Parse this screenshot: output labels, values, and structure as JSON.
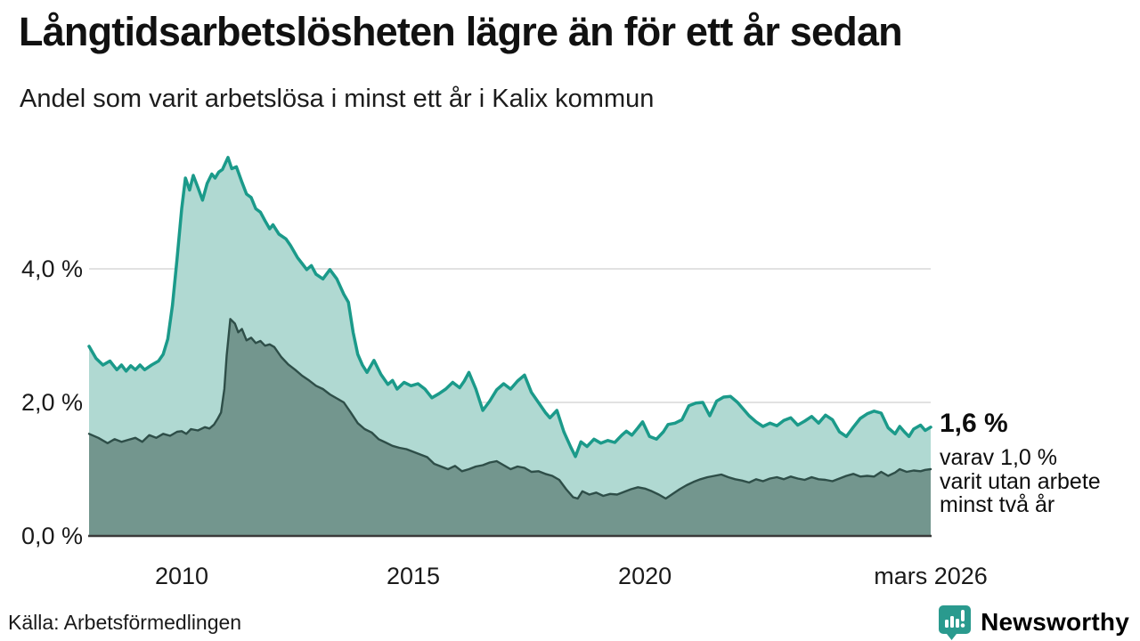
{
  "header": {
    "title": "Långtidsarbetslösheten lägre än för ett år sedan",
    "subtitle": "Andel som varit arbetslösa i minst ett år i Kalix kommun"
  },
  "chart_data": {
    "type": "area",
    "title": "Långtidsarbetslösheten lägre än för ett år sedan",
    "subtitle": "Andel som varit arbetslösa i minst ett år i Kalix kommun",
    "x_unit": "decimal_year",
    "x_range": [
      2008.0,
      2026.17
    ],
    "ylim": [
      0,
      6
    ],
    "grid": "horizontal",
    "legend": "none",
    "y_ticks": [
      {
        "value": 4.0,
        "label": "4,0 %"
      },
      {
        "value": 2.0,
        "label": "2,0 %"
      },
      {
        "value": 0.0,
        "label": "0,0 %"
      }
    ],
    "x_ticks": [
      {
        "value": 2010.0,
        "label": "2010"
      },
      {
        "value": 2015.0,
        "label": "2015"
      },
      {
        "value": 2020.0,
        "label": "2020"
      },
      {
        "value": 2026.17,
        "label": "mars 2026"
      }
    ],
    "series": [
      {
        "name": "total_minst_ett_ar",
        "latest_value_pct": 1.6,
        "line_color": "#1b9a8a",
        "fill_color": "#b0d9d2",
        "line_width": 3.5,
        "points": [
          [
            2008.0,
            2.84
          ],
          [
            2008.15,
            2.66
          ],
          [
            2008.3,
            2.56
          ],
          [
            2008.45,
            2.62
          ],
          [
            2008.6,
            2.49
          ],
          [
            2008.7,
            2.56
          ],
          [
            2008.8,
            2.47
          ],
          [
            2008.9,
            2.55
          ],
          [
            2009.0,
            2.49
          ],
          [
            2009.1,
            2.56
          ],
          [
            2009.2,
            2.49
          ],
          [
            2009.35,
            2.56
          ],
          [
            2009.5,
            2.62
          ],
          [
            2009.6,
            2.72
          ],
          [
            2009.7,
            2.95
          ],
          [
            2009.8,
            3.45
          ],
          [
            2009.9,
            4.15
          ],
          [
            2010.0,
            4.9
          ],
          [
            2010.08,
            5.36
          ],
          [
            2010.17,
            5.18
          ],
          [
            2010.25,
            5.4
          ],
          [
            2010.35,
            5.22
          ],
          [
            2010.45,
            5.03
          ],
          [
            2010.55,
            5.28
          ],
          [
            2010.65,
            5.42
          ],
          [
            2010.72,
            5.36
          ],
          [
            2010.8,
            5.45
          ],
          [
            2010.88,
            5.49
          ],
          [
            2011.0,
            5.67
          ],
          [
            2011.08,
            5.5
          ],
          [
            2011.18,
            5.53
          ],
          [
            2011.3,
            5.3
          ],
          [
            2011.4,
            5.12
          ],
          [
            2011.5,
            5.07
          ],
          [
            2011.6,
            4.9
          ],
          [
            2011.7,
            4.85
          ],
          [
            2011.8,
            4.72
          ],
          [
            2011.9,
            4.6
          ],
          [
            2011.97,
            4.66
          ],
          [
            2012.1,
            4.52
          ],
          [
            2012.25,
            4.45
          ],
          [
            2012.35,
            4.35
          ],
          [
            2012.5,
            4.17
          ],
          [
            2012.6,
            4.08
          ],
          [
            2012.7,
            3.99
          ],
          [
            2012.8,
            4.05
          ],
          [
            2012.9,
            3.92
          ],
          [
            2013.05,
            3.85
          ],
          [
            2013.2,
            3.99
          ],
          [
            2013.35,
            3.85
          ],
          [
            2013.5,
            3.62
          ],
          [
            2013.6,
            3.5
          ],
          [
            2013.7,
            3.05
          ],
          [
            2013.8,
            2.72
          ],
          [
            2013.9,
            2.56
          ],
          [
            2014.0,
            2.45
          ],
          [
            2014.15,
            2.63
          ],
          [
            2014.3,
            2.42
          ],
          [
            2014.45,
            2.27
          ],
          [
            2014.55,
            2.33
          ],
          [
            2014.65,
            2.2
          ],
          [
            2014.8,
            2.3
          ],
          [
            2014.95,
            2.25
          ],
          [
            2015.1,
            2.28
          ],
          [
            2015.25,
            2.2
          ],
          [
            2015.4,
            2.07
          ],
          [
            2015.55,
            2.13
          ],
          [
            2015.7,
            2.2
          ],
          [
            2015.85,
            2.3
          ],
          [
            2016.0,
            2.22
          ],
          [
            2016.1,
            2.32
          ],
          [
            2016.2,
            2.45
          ],
          [
            2016.35,
            2.2
          ],
          [
            2016.5,
            1.88
          ],
          [
            2016.65,
            2.02
          ],
          [
            2016.8,
            2.19
          ],
          [
            2016.95,
            2.28
          ],
          [
            2017.1,
            2.2
          ],
          [
            2017.25,
            2.32
          ],
          [
            2017.4,
            2.41
          ],
          [
            2017.55,
            2.15
          ],
          [
            2017.7,
            2.0
          ],
          [
            2017.85,
            1.85
          ],
          [
            2017.95,
            1.77
          ],
          [
            2018.1,
            1.88
          ],
          [
            2018.25,
            1.56
          ],
          [
            2018.4,
            1.33
          ],
          [
            2018.5,
            1.19
          ],
          [
            2018.62,
            1.41
          ],
          [
            2018.75,
            1.34
          ],
          [
            2018.9,
            1.45
          ],
          [
            2019.05,
            1.39
          ],
          [
            2019.2,
            1.43
          ],
          [
            2019.35,
            1.4
          ],
          [
            2019.5,
            1.51
          ],
          [
            2019.6,
            1.57
          ],
          [
            2019.72,
            1.51
          ],
          [
            2019.85,
            1.62
          ],
          [
            2019.95,
            1.71
          ],
          [
            2020.1,
            1.49
          ],
          [
            2020.25,
            1.45
          ],
          [
            2020.4,
            1.56
          ],
          [
            2020.5,
            1.67
          ],
          [
            2020.65,
            1.69
          ],
          [
            2020.8,
            1.74
          ],
          [
            2020.95,
            1.95
          ],
          [
            2021.1,
            1.99
          ],
          [
            2021.25,
            2.0
          ],
          [
            2021.4,
            1.8
          ],
          [
            2021.55,
            2.02
          ],
          [
            2021.7,
            2.08
          ],
          [
            2021.85,
            2.09
          ],
          [
            2022.0,
            2.0
          ],
          [
            2022.1,
            1.92
          ],
          [
            2022.25,
            1.8
          ],
          [
            2022.4,
            1.71
          ],
          [
            2022.55,
            1.64
          ],
          [
            2022.7,
            1.69
          ],
          [
            2022.85,
            1.65
          ],
          [
            2023.0,
            1.73
          ],
          [
            2023.15,
            1.77
          ],
          [
            2023.3,
            1.66
          ],
          [
            2023.45,
            1.72
          ],
          [
            2023.6,
            1.79
          ],
          [
            2023.75,
            1.69
          ],
          [
            2023.9,
            1.81
          ],
          [
            2024.05,
            1.74
          ],
          [
            2024.2,
            1.56
          ],
          [
            2024.35,
            1.49
          ],
          [
            2024.5,
            1.63
          ],
          [
            2024.65,
            1.76
          ],
          [
            2024.8,
            1.83
          ],
          [
            2024.95,
            1.87
          ],
          [
            2025.1,
            1.84
          ],
          [
            2025.25,
            1.62
          ],
          [
            2025.4,
            1.53
          ],
          [
            2025.5,
            1.64
          ],
          [
            2025.6,
            1.56
          ],
          [
            2025.7,
            1.49
          ],
          [
            2025.8,
            1.6
          ],
          [
            2025.95,
            1.66
          ],
          [
            2026.05,
            1.58
          ],
          [
            2026.17,
            1.63
          ]
        ]
      },
      {
        "name": "varav_minst_tva_ar",
        "latest_value_pct": 1.0,
        "line_color": "#2e4e48",
        "fill_color": "#73968e",
        "line_width": 2.4,
        "points": [
          [
            2008.0,
            1.53
          ],
          [
            2008.2,
            1.47
          ],
          [
            2008.4,
            1.39
          ],
          [
            2008.55,
            1.45
          ],
          [
            2008.7,
            1.41
          ],
          [
            2008.85,
            1.44
          ],
          [
            2009.0,
            1.47
          ],
          [
            2009.15,
            1.41
          ],
          [
            2009.3,
            1.51
          ],
          [
            2009.45,
            1.47
          ],
          [
            2009.6,
            1.53
          ],
          [
            2009.75,
            1.5
          ],
          [
            2009.9,
            1.56
          ],
          [
            2010.0,
            1.57
          ],
          [
            2010.1,
            1.53
          ],
          [
            2010.2,
            1.6
          ],
          [
            2010.35,
            1.58
          ],
          [
            2010.5,
            1.63
          ],
          [
            2010.6,
            1.61
          ],
          [
            2010.7,
            1.67
          ],
          [
            2010.78,
            1.76
          ],
          [
            2010.85,
            1.85
          ],
          [
            2010.92,
            2.2
          ],
          [
            2010.97,
            2.7
          ],
          [
            2011.05,
            3.25
          ],
          [
            2011.15,
            3.18
          ],
          [
            2011.22,
            3.05
          ],
          [
            2011.3,
            3.1
          ],
          [
            2011.4,
            2.93
          ],
          [
            2011.5,
            2.97
          ],
          [
            2011.6,
            2.89
          ],
          [
            2011.7,
            2.92
          ],
          [
            2011.8,
            2.85
          ],
          [
            2011.9,
            2.87
          ],
          [
            2012.0,
            2.83
          ],
          [
            2012.15,
            2.68
          ],
          [
            2012.3,
            2.57
          ],
          [
            2012.45,
            2.49
          ],
          [
            2012.6,
            2.4
          ],
          [
            2012.75,
            2.33
          ],
          [
            2012.9,
            2.25
          ],
          [
            2013.05,
            2.2
          ],
          [
            2013.2,
            2.12
          ],
          [
            2013.35,
            2.06
          ],
          [
            2013.5,
            2.0
          ],
          [
            2013.65,
            1.85
          ],
          [
            2013.8,
            1.69
          ],
          [
            2013.95,
            1.6
          ],
          [
            2014.1,
            1.55
          ],
          [
            2014.25,
            1.45
          ],
          [
            2014.4,
            1.4
          ],
          [
            2014.55,
            1.35
          ],
          [
            2014.7,
            1.32
          ],
          [
            2014.85,
            1.3
          ],
          [
            2015.0,
            1.26
          ],
          [
            2015.15,
            1.22
          ],
          [
            2015.3,
            1.18
          ],
          [
            2015.45,
            1.08
          ],
          [
            2015.6,
            1.04
          ],
          [
            2015.75,
            1.0
          ],
          [
            2015.9,
            1.05
          ],
          [
            2016.05,
            0.97
          ],
          [
            2016.2,
            1.0
          ],
          [
            2016.35,
            1.04
          ],
          [
            2016.5,
            1.06
          ],
          [
            2016.65,
            1.1
          ],
          [
            2016.8,
            1.12
          ],
          [
            2016.95,
            1.06
          ],
          [
            2017.1,
            1.0
          ],
          [
            2017.25,
            1.04
          ],
          [
            2017.4,
            1.02
          ],
          [
            2017.55,
            0.96
          ],
          [
            2017.7,
            0.97
          ],
          [
            2017.85,
            0.93
          ],
          [
            2018.0,
            0.9
          ],
          [
            2018.15,
            0.84
          ],
          [
            2018.3,
            0.7
          ],
          [
            2018.45,
            0.58
          ],
          [
            2018.55,
            0.56
          ],
          [
            2018.65,
            0.67
          ],
          [
            2018.8,
            0.62
          ],
          [
            2018.95,
            0.65
          ],
          [
            2019.1,
            0.6
          ],
          [
            2019.25,
            0.63
          ],
          [
            2019.4,
            0.62
          ],
          [
            2019.55,
            0.66
          ],
          [
            2019.7,
            0.7
          ],
          [
            2019.85,
            0.73
          ],
          [
            2020.0,
            0.71
          ],
          [
            2020.15,
            0.67
          ],
          [
            2020.3,
            0.62
          ],
          [
            2020.45,
            0.56
          ],
          [
            2020.6,
            0.63
          ],
          [
            2020.75,
            0.7
          ],
          [
            2020.9,
            0.76
          ],
          [
            2021.05,
            0.81
          ],
          [
            2021.2,
            0.85
          ],
          [
            2021.35,
            0.88
          ],
          [
            2021.5,
            0.9
          ],
          [
            2021.65,
            0.92
          ],
          [
            2021.8,
            0.88
          ],
          [
            2021.95,
            0.85
          ],
          [
            2022.1,
            0.83
          ],
          [
            2022.25,
            0.8
          ],
          [
            2022.4,
            0.85
          ],
          [
            2022.55,
            0.82
          ],
          [
            2022.7,
            0.86
          ],
          [
            2022.85,
            0.88
          ],
          [
            2023.0,
            0.85
          ],
          [
            2023.15,
            0.89
          ],
          [
            2023.3,
            0.86
          ],
          [
            2023.45,
            0.84
          ],
          [
            2023.6,
            0.88
          ],
          [
            2023.75,
            0.85
          ],
          [
            2023.9,
            0.84
          ],
          [
            2024.05,
            0.82
          ],
          [
            2024.2,
            0.86
          ],
          [
            2024.35,
            0.9
          ],
          [
            2024.5,
            0.93
          ],
          [
            2024.65,
            0.89
          ],
          [
            2024.8,
            0.9
          ],
          [
            2024.95,
            0.89
          ],
          [
            2025.1,
            0.96
          ],
          [
            2025.25,
            0.9
          ],
          [
            2025.4,
            0.95
          ],
          [
            2025.5,
            1.0
          ],
          [
            2025.65,
            0.96
          ],
          [
            2025.8,
            0.98
          ],
          [
            2025.95,
            0.97
          ],
          [
            2026.05,
            0.99
          ],
          [
            2026.17,
            1.0
          ]
        ]
      }
    ],
    "annotation": {
      "value_label": "1,6 %",
      "lines": [
        "varav 1,0 %",
        "varit utan arbete",
        "minst två år"
      ]
    },
    "colors": {
      "grid_line": "#d9d9d9",
      "baseline": "#3a3a3a",
      "text": "#1a1a1a"
    }
  },
  "footer": {
    "source": "Källa: Arbetsförmedlingen",
    "logo_text": "Newsworthy",
    "logo_icon": "bar-chart-bubble-icon",
    "brand_color": "#2a9a8e"
  }
}
